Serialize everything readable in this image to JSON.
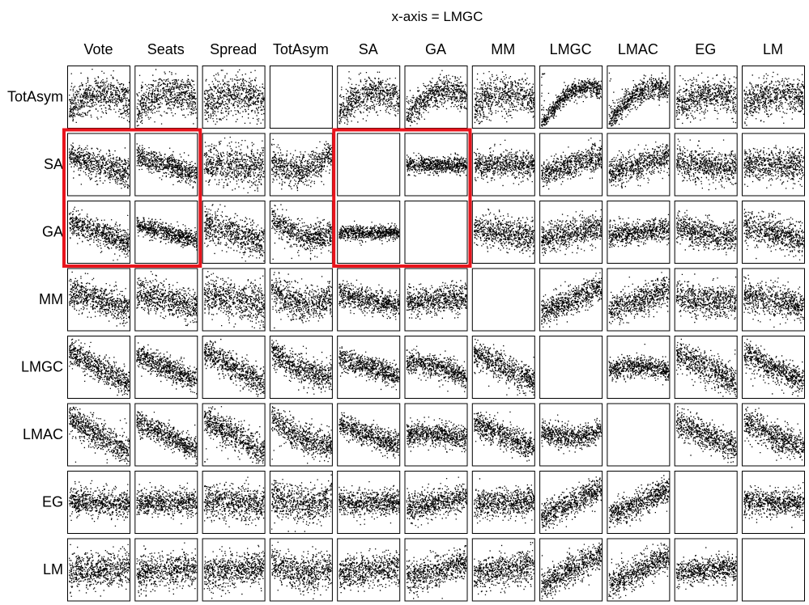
{
  "chart_data": {
    "type": "scatter",
    "title": "x-axis = LMGC",
    "columns": [
      "Vote",
      "Seats",
      "Spread",
      "TotAsym",
      "SA",
      "GA",
      "MM",
      "LMGC",
      "LMAC",
      "EG",
      "LM"
    ],
    "rows": [
      "TotAsym",
      "SA",
      "GA",
      "MM",
      "LMGC",
      "LMAC",
      "EG",
      "LM"
    ],
    "grid": false,
    "legend": "none",
    "points_per_panel": 700,
    "empty_panels": [
      {
        "row": "TotAsym",
        "col": "TotAsym"
      },
      {
        "row": "SA",
        "col": "SA"
      },
      {
        "row": "GA",
        "col": "GA"
      },
      {
        "row": "MM",
        "col": "MM"
      },
      {
        "row": "LMGC",
        "col": "LMGC"
      },
      {
        "row": "LMAC",
        "col": "LMAC"
      },
      {
        "row": "EG",
        "col": "EG"
      },
      {
        "row": "LM",
        "col": "LM"
      }
    ],
    "highlight_color": "#e8141c",
    "highlight_groups": [
      {
        "rows": [
          "SA",
          "GA"
        ],
        "cols": [
          "Vote",
          "Seats"
        ]
      },
      {
        "rows": [
          "SA",
          "GA"
        ],
        "cols": [
          "SA",
          "GA"
        ]
      }
    ],
    "panel_trends": [
      [
        {
          "slope": 0.2,
          "curve": -0.9,
          "spread": 0.26
        },
        {
          "slope": 0.25,
          "curve": -0.9,
          "spread": 0.26
        },
        {
          "slope": 0.1,
          "curve": -0.6,
          "spread": 0.28
        },
        null,
        {
          "slope": 0.3,
          "curve": -1.0,
          "spread": 0.24
        },
        {
          "slope": 0.6,
          "curve": -1.1,
          "spread": 0.2
        },
        {
          "slope": 0.2,
          "curve": -0.8,
          "spread": 0.26
        },
        {
          "slope": 1.0,
          "curve": -1.3,
          "spread": 0.12
        },
        {
          "slope": 0.9,
          "curve": -1.1,
          "spread": 0.16
        },
        {
          "slope": 0.2,
          "curve": -0.6,
          "spread": 0.24
        },
        {
          "slope": 0.2,
          "curve": -0.6,
          "spread": 0.26
        }
      ],
      [
        {
          "slope": -0.5,
          "curve": 0,
          "spread": 0.2
        },
        {
          "slope": -0.5,
          "curve": 0,
          "spread": 0.16
        },
        {
          "slope": -0.1,
          "curve": 0,
          "spread": 0.26
        },
        {
          "slope": 0.2,
          "curve": 0.9,
          "spread": 0.22
        },
        null,
        {
          "slope": 0.0,
          "curve": 0,
          "spread": 0.12
        },
        {
          "slope": 0.0,
          "curve": 0,
          "spread": 0.18
        },
        {
          "slope": 0.5,
          "curve": 0,
          "spread": 0.18
        },
        {
          "slope": 0.5,
          "curve": 0,
          "spread": 0.2
        },
        {
          "slope": -0.2,
          "curve": 0,
          "spread": 0.22
        },
        {
          "slope": -0.1,
          "curve": 0,
          "spread": 0.22
        }
      ],
      [
        {
          "slope": -0.6,
          "curve": 0,
          "spread": 0.18
        },
        {
          "slope": -0.4,
          "curve": 0,
          "spread": 0.12
        },
        {
          "slope": -0.5,
          "curve": 0,
          "spread": 0.24
        },
        {
          "slope": -0.5,
          "curve": 0.7,
          "spread": 0.2
        },
        {
          "slope": 0.0,
          "curve": 0,
          "spread": 0.1
        },
        null,
        {
          "slope": -0.3,
          "curve": 0,
          "spread": 0.22
        },
        {
          "slope": 0.3,
          "curve": 0,
          "spread": 0.2
        },
        {
          "slope": 0.2,
          "curve": 0,
          "spread": 0.16
        },
        {
          "slope": -0.3,
          "curve": 0,
          "spread": 0.2
        },
        {
          "slope": -0.4,
          "curve": 0,
          "spread": 0.22
        }
      ],
      [
        {
          "slope": -0.5,
          "curve": 0,
          "spread": 0.22
        },
        {
          "slope": -0.4,
          "curve": 0,
          "spread": 0.22
        },
        {
          "slope": -0.3,
          "curve": 0,
          "spread": 0.28
        },
        {
          "slope": -0.3,
          "curve": 0.8,
          "spread": 0.24
        },
        {
          "slope": -0.3,
          "curve": 0,
          "spread": 0.16
        },
        {
          "slope": 0.1,
          "curve": 0,
          "spread": 0.2
        },
        null,
        {
          "slope": 0.7,
          "curve": 0,
          "spread": 0.2
        },
        {
          "slope": 0.6,
          "curve": 0,
          "spread": 0.2
        },
        {
          "slope": -0.2,
          "curve": 0,
          "spread": 0.22
        },
        {
          "slope": -0.3,
          "curve": 0,
          "spread": 0.22
        }
      ],
      [
        {
          "slope": -0.9,
          "curve": 0,
          "spread": 0.18
        },
        {
          "slope": -0.7,
          "curve": 0,
          "spread": 0.16
        },
        {
          "slope": -0.9,
          "curve": 0,
          "spread": 0.2
        },
        {
          "slope": -0.7,
          "curve": 0.5,
          "spread": 0.2
        },
        {
          "slope": -0.5,
          "curve": 0,
          "spread": 0.16
        },
        {
          "slope": -0.4,
          "curve": -0.3,
          "spread": 0.16
        },
        {
          "slope": -0.8,
          "curve": 0,
          "spread": 0.2
        },
        null,
        {
          "slope": 0.0,
          "curve": -0.4,
          "spread": 0.14
        },
        {
          "slope": -0.8,
          "curve": 0,
          "spread": 0.2
        },
        {
          "slope": -0.8,
          "curve": 0,
          "spread": 0.2
        }
      ],
      [
        {
          "slope": -1.0,
          "curve": 0,
          "spread": 0.2
        },
        {
          "slope": -0.8,
          "curve": 0,
          "spread": 0.16
        },
        {
          "slope": -0.9,
          "curve": 0,
          "spread": 0.22
        },
        {
          "slope": -0.8,
          "curve": 0.6,
          "spread": 0.2
        },
        {
          "slope": -0.6,
          "curve": 0,
          "spread": 0.16
        },
        {
          "slope": -0.1,
          "curve": -0.2,
          "spread": 0.16
        },
        {
          "slope": -0.7,
          "curve": 0,
          "spread": 0.18
        },
        {
          "slope": 0.0,
          "curve": 0.5,
          "spread": 0.16
        },
        null,
        {
          "slope": -0.7,
          "curve": 0,
          "spread": 0.2
        },
        {
          "slope": -0.7,
          "curve": 0,
          "spread": 0.2
        }
      ],
      [
        {
          "slope": -0.1,
          "curve": 0,
          "spread": 0.2
        },
        {
          "slope": 0.0,
          "curve": 0,
          "spread": 0.18
        },
        {
          "slope": -0.1,
          "curve": 0,
          "spread": 0.24
        },
        {
          "slope": -0.1,
          "curve": 0.5,
          "spread": 0.24
        },
        {
          "slope": 0.0,
          "curve": 0,
          "spread": 0.18
        },
        {
          "slope": 0.3,
          "curve": 0,
          "spread": 0.2
        },
        {
          "slope": 0.1,
          "curve": 0,
          "spread": 0.2
        },
        {
          "slope": 0.8,
          "curve": 0,
          "spread": 0.18
        },
        {
          "slope": 0.7,
          "curve": 0,
          "spread": 0.18
        },
        null,
        {
          "slope": 0.0,
          "curve": 0,
          "spread": 0.18
        }
      ],
      [
        {
          "slope": 0.1,
          "curve": 0,
          "spread": 0.24
        },
        {
          "slope": 0.1,
          "curve": 0,
          "spread": 0.24
        },
        {
          "slope": 0.2,
          "curve": 0,
          "spread": 0.24
        },
        {
          "slope": -0.1,
          "curve": 0.6,
          "spread": 0.24
        },
        {
          "slope": 0.2,
          "curve": 0,
          "spread": 0.22
        },
        {
          "slope": 0.4,
          "curve": 0,
          "spread": 0.22
        },
        {
          "slope": 0.3,
          "curve": 0,
          "spread": 0.22
        },
        {
          "slope": 0.9,
          "curve": 0,
          "spread": 0.2
        },
        {
          "slope": 0.8,
          "curve": 0,
          "spread": 0.2
        },
        {
          "slope": 0.1,
          "curve": 0,
          "spread": 0.18
        },
        null
      ]
    ]
  }
}
